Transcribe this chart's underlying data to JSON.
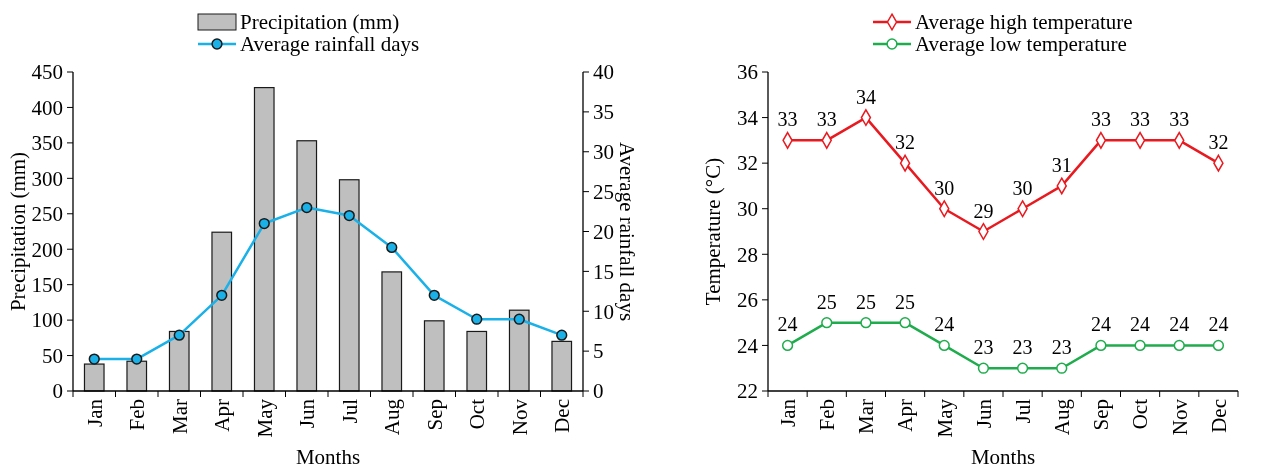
{
  "chart_data": [
    {
      "type": "bar",
      "categories": [
        "Jan",
        "Feb",
        "Mar",
        "Apr",
        "May",
        "Jun",
        "Jul",
        "Aug",
        "Sep",
        "Oct",
        "Nov",
        "Dec"
      ],
      "xlabel": "Months",
      "ylabel": "Precipitation (mm)",
      "y2label": "Average rainfall days",
      "ylim": [
        0,
        450
      ],
      "yticks": [
        0,
        50,
        100,
        150,
        200,
        250,
        300,
        350,
        400,
        450
      ],
      "y2lim": [
        0,
        40
      ],
      "y2ticks": [
        0,
        5,
        10,
        15,
        20,
        25,
        30,
        35,
        40
      ],
      "legend": "top",
      "series": [
        {
          "name": "Precipitation (mm)",
          "type": "bar",
          "color": "#bfbfbf",
          "values": [
            38,
            42,
            84,
            224,
            428,
            353,
            298,
            168,
            99,
            84,
            114,
            70
          ]
        },
        {
          "name": "Average rainfall days",
          "type": "line",
          "axis": "y2",
          "color": "#1ab0e8",
          "marker": "circle",
          "values": [
            4,
            4,
            7,
            12,
            21,
            23,
            22,
            18,
            12,
            9,
            9,
            7
          ]
        }
      ]
    },
    {
      "type": "line",
      "categories": [
        "Jan",
        "Feb",
        "Mar",
        "Apr",
        "May",
        "Jun",
        "Jul",
        "Aug",
        "Sep",
        "Oct",
        "Nov",
        "Dec"
      ],
      "xlabel": "Months",
      "ylabel": "Temperature (°C)",
      "ylim": [
        22,
        36
      ],
      "yticks": [
        22,
        24,
        26,
        28,
        30,
        32,
        34,
        36
      ],
      "legend": "top",
      "data_labels": true,
      "series": [
        {
          "name": "Average high temperature",
          "color": "#e8191f",
          "marker": "diamond",
          "values": [
            33,
            33,
            34,
            32,
            30,
            29,
            30,
            31,
            33,
            33,
            33,
            32
          ]
        },
        {
          "name": "Average low temperature",
          "color": "#1fac4d",
          "marker": "circle",
          "values": [
            24,
            25,
            25,
            25,
            24,
            23,
            23,
            23,
            24,
            24,
            24,
            24
          ]
        }
      ]
    }
  ]
}
